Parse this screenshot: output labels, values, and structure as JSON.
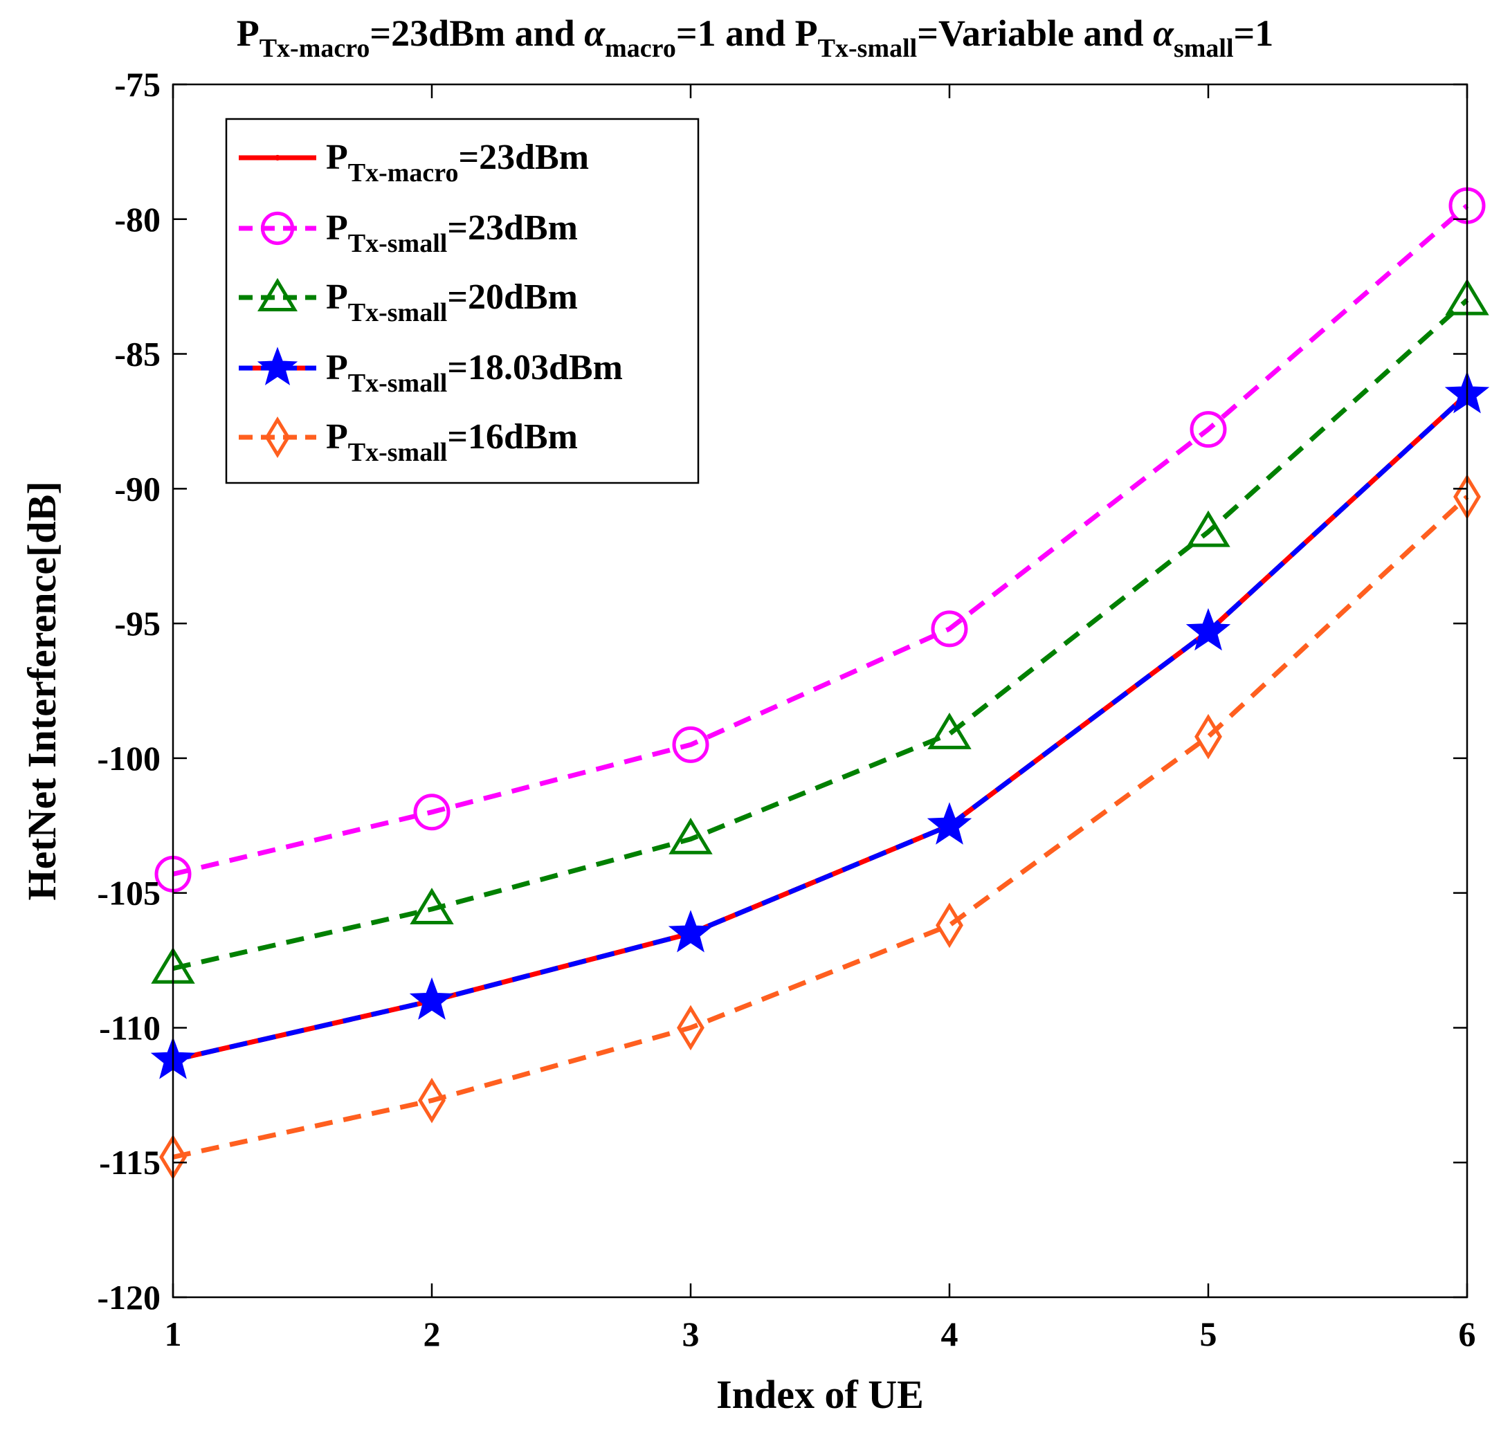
{
  "chart_data": {
    "type": "line",
    "title": {
      "segments": [
        {
          "text": "P",
          "style": "normal"
        },
        {
          "text": "Tx-macro",
          "style": "sub"
        },
        {
          "text": "=23dBm and ",
          "style": "normal"
        },
        {
          "text": "α",
          "style": "italic"
        },
        {
          "text": "macro",
          "style": "sub"
        },
        {
          "text": "=1 and P",
          "style": "normal"
        },
        {
          "text": "Tx-small",
          "style": "sub"
        },
        {
          "text": "=Variable and ",
          "style": "normal"
        },
        {
          "text": "α",
          "style": "italic"
        },
        {
          "text": "small",
          "style": "sub"
        },
        {
          "text": "=1",
          "style": "normal"
        }
      ]
    },
    "xlabel": "Index of UE",
    "ylabel": "HetNet Interference[dB]",
    "xlim": [
      1,
      6
    ],
    "ylim": [
      -120,
      -75
    ],
    "x_ticks": [
      1,
      2,
      3,
      4,
      5,
      6
    ],
    "y_ticks": [
      -120,
      -115,
      -110,
      -105,
      -100,
      -95,
      -90,
      -85,
      -80,
      -75
    ],
    "grid": false,
    "legend_position": "top-left",
    "x": [
      1,
      2,
      3,
      4,
      5,
      6
    ],
    "series": [
      {
        "name": "PTx-macro=23dBm",
        "label_main": "P",
        "label_sub": "Tx-macro",
        "label_tail": "=23dBm",
        "color": "#ff0000",
        "dash": "solid",
        "marker": "dot",
        "values": [
          -111.2,
          -109.0,
          -106.5,
          -102.5,
          -95.3,
          -86.5
        ]
      },
      {
        "name": "PTx-small=23dBm",
        "label_main": "P",
        "label_sub": "Tx-small",
        "label_tail": "=23dBm",
        "color": "#ff00ff",
        "dash": "dashed",
        "marker": "circle",
        "values": [
          -104.3,
          -102.0,
          -99.5,
          -95.2,
          -87.8,
          -79.5
        ]
      },
      {
        "name": "PTx-small=20dBm",
        "label_main": "P",
        "label_sub": "Tx-small",
        "label_tail": "=20dBm",
        "color": "#008000",
        "dash": "dashed",
        "marker": "triangle",
        "values": [
          -107.8,
          -105.6,
          -103.0,
          -99.1,
          -91.6,
          -83.0
        ]
      },
      {
        "name": "PTx-small=18.03dBm",
        "label_main": "P",
        "label_sub": "Tx-small",
        "label_tail": "=18.03dBm",
        "color": "#0000ff",
        "dash": "dashed",
        "marker": "star",
        "overlay_color": "#ff0000",
        "values": [
          -111.2,
          -109.0,
          -106.5,
          -102.5,
          -95.3,
          -86.5
        ]
      },
      {
        "name": "PTx-small=16dBm",
        "label_main": "P",
        "label_sub": "Tx-small",
        "label_tail": "=16dBm",
        "color": "#ff5f1f",
        "dash": "dashed",
        "marker": "diamond",
        "values": [
          -114.8,
          -112.7,
          -110.0,
          -106.2,
          -99.2,
          -90.3
        ]
      }
    ]
  }
}
